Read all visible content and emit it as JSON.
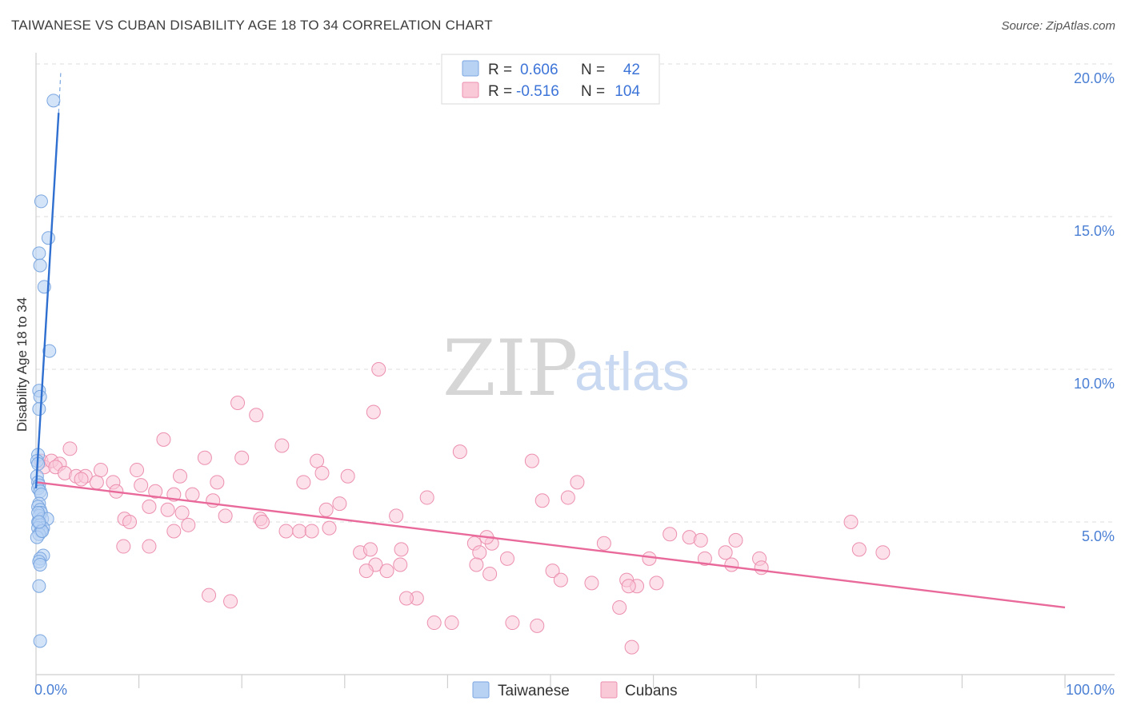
{
  "header": {
    "title": "TAIWANESE VS CUBAN DISABILITY AGE 18 TO 34 CORRELATION CHART",
    "source": "Source: ZipAtlas.com"
  },
  "watermark": {
    "zip": "ZIP",
    "atlas": "atlas"
  },
  "colors": {
    "taiwanese_fill": "#b8d2f3",
    "taiwanese_stroke": "#7aa6e0",
    "taiwanese_line": "#2f6fd0",
    "cubans_fill": "#f9c9d8",
    "cubans_stroke": "#ec8fae",
    "cubans_line": "#e8699a",
    "grid": "#dcdcdc",
    "axis_text": "#4a7fd4"
  },
  "legend": {
    "rows": [
      {
        "r_label": "R =",
        "r_value": "0.606",
        "n_label": "N =",
        "n_value": "42"
      },
      {
        "r_label": "R =",
        "r_value": "-0.516",
        "n_label": "N =",
        "n_value": "104"
      }
    ]
  },
  "chart_data": {
    "type": "scatter",
    "title": "TAIWANESE VS CUBAN DISABILITY AGE 18 TO 34 CORRELATION CHART",
    "xlabel": "",
    "ylabel": "Disability Age 18 to 34",
    "xlim": [
      0,
      100
    ],
    "ylim": [
      0,
      20
    ],
    "x_tick_labels": [
      "0.0%",
      "100.0%"
    ],
    "y_ticks": [
      5,
      10,
      15,
      20
    ],
    "y_tick_labels": [
      "5.0%",
      "10.0%",
      "15.0%",
      "20.0%"
    ],
    "series": [
      {
        "name": "Taiwanese",
        "r": 0.606,
        "n": 42,
        "trend": {
          "x": [
            0.0,
            2.2
          ],
          "y": [
            6.1,
            18.4
          ],
          "dashed_ext_x": [
            2.2,
            2.4
          ],
          "dashed_ext_y": [
            18.4,
            19.7
          ]
        },
        "points": [
          [
            1.7,
            18.8
          ],
          [
            0.5,
            15.5
          ],
          [
            1.2,
            14.3
          ],
          [
            0.3,
            13.8
          ],
          [
            0.4,
            13.4
          ],
          [
            0.8,
            12.7
          ],
          [
            1.3,
            10.6
          ],
          [
            0.3,
            9.3
          ],
          [
            0.4,
            9.1
          ],
          [
            0.3,
            8.7
          ],
          [
            0.2,
            7.2
          ],
          [
            0.1,
            7.0
          ],
          [
            0.2,
            6.9
          ],
          [
            0.1,
            6.5
          ],
          [
            0.2,
            6.3
          ],
          [
            0.3,
            6.2
          ],
          [
            0.2,
            6.1
          ],
          [
            0.4,
            6.0
          ],
          [
            0.5,
            5.9
          ],
          [
            0.3,
            5.6
          ],
          [
            0.2,
            5.5
          ],
          [
            0.4,
            5.4
          ],
          [
            0.5,
            5.3
          ],
          [
            0.3,
            5.2
          ],
          [
            0.6,
            5.1
          ],
          [
            1.1,
            5.1
          ],
          [
            0.2,
            5.0
          ],
          [
            0.4,
            4.9
          ],
          [
            0.7,
            4.8
          ],
          [
            0.2,
            4.8
          ],
          [
            0.5,
            4.7
          ],
          [
            0.3,
            4.6
          ],
          [
            0.1,
            4.5
          ],
          [
            0.7,
            3.9
          ],
          [
            0.4,
            3.8
          ],
          [
            0.3,
            3.7
          ],
          [
            0.4,
            3.6
          ],
          [
            0.3,
            2.9
          ],
          [
            0.4,
            1.1
          ],
          [
            0.2,
            5.3
          ],
          [
            0.6,
            4.7
          ],
          [
            0.3,
            5.0
          ]
        ]
      },
      {
        "name": "Cubans",
        "r": -0.516,
        "n": 104,
        "trend": {
          "x": [
            0.0,
            100.0
          ],
          "y": [
            6.3,
            2.2
          ]
        },
        "points": [
          [
            0.5,
            7.0
          ],
          [
            0.8,
            6.8
          ],
          [
            1.5,
            7.0
          ],
          [
            2.3,
            6.9
          ],
          [
            1.9,
            6.8
          ],
          [
            3.3,
            7.4
          ],
          [
            2.8,
            6.6
          ],
          [
            3.9,
            6.5
          ],
          [
            4.8,
            6.5
          ],
          [
            5.9,
            6.3
          ],
          [
            6.3,
            6.7
          ],
          [
            7.5,
            6.3
          ],
          [
            4.4,
            6.4
          ],
          [
            7.8,
            6.0
          ],
          [
            9.8,
            6.7
          ],
          [
            10.2,
            6.2
          ],
          [
            11.6,
            6.0
          ],
          [
            12.4,
            7.7
          ],
          [
            13.4,
            5.9
          ],
          [
            14.0,
            6.5
          ],
          [
            15.2,
            5.9
          ],
          [
            16.4,
            7.1
          ],
          [
            17.6,
            6.3
          ],
          [
            17.2,
            5.7
          ],
          [
            8.6,
            5.1
          ],
          [
            11.0,
            5.5
          ],
          [
            12.8,
            5.4
          ],
          [
            14.2,
            5.3
          ],
          [
            14.8,
            4.9
          ],
          [
            13.4,
            4.7
          ],
          [
            9.1,
            5.0
          ],
          [
            8.5,
            4.2
          ],
          [
            11.0,
            4.2
          ],
          [
            18.4,
            5.2
          ],
          [
            20.0,
            7.1
          ],
          [
            19.6,
            8.9
          ],
          [
            21.4,
            8.5
          ],
          [
            23.9,
            7.5
          ],
          [
            21.8,
            5.1
          ],
          [
            22.0,
            5.0
          ],
          [
            24.3,
            4.7
          ],
          [
            25.6,
            4.7
          ],
          [
            26.8,
            4.7
          ],
          [
            27.3,
            7.0
          ],
          [
            26.0,
            6.3
          ],
          [
            27.8,
            6.6
          ],
          [
            28.2,
            5.4
          ],
          [
            28.5,
            4.8
          ],
          [
            29.5,
            5.6
          ],
          [
            30.3,
            6.5
          ],
          [
            33.3,
            10.0
          ],
          [
            32.8,
            8.6
          ],
          [
            31.5,
            4.0
          ],
          [
            35.5,
            4.1
          ],
          [
            35.0,
            5.2
          ],
          [
            32.5,
            4.1
          ],
          [
            33.0,
            3.6
          ],
          [
            34.1,
            3.4
          ],
          [
            35.4,
            3.6
          ],
          [
            32.1,
            3.4
          ],
          [
            37.0,
            2.5
          ],
          [
            36.0,
            2.5
          ],
          [
            38.0,
            5.8
          ],
          [
            41.2,
            7.3
          ],
          [
            44.1,
            3.3
          ],
          [
            44.3,
            4.3
          ],
          [
            42.6,
            4.3
          ],
          [
            43.8,
            4.5
          ],
          [
            45.8,
            3.8
          ],
          [
            43.1,
            4.0
          ],
          [
            42.8,
            3.6
          ],
          [
            48.2,
            7.0
          ],
          [
            49.2,
            5.7
          ],
          [
            51.7,
            5.8
          ],
          [
            52.6,
            6.3
          ],
          [
            50.2,
            3.4
          ],
          [
            51.0,
            3.1
          ],
          [
            54.0,
            3.0
          ],
          [
            55.2,
            4.3
          ],
          [
            57.4,
            3.1
          ],
          [
            58.4,
            2.9
          ],
          [
            63.5,
            4.5
          ],
          [
            61.6,
            4.6
          ],
          [
            64.6,
            4.4
          ],
          [
            65.0,
            3.8
          ],
          [
            67.0,
            4.0
          ],
          [
            67.6,
            3.6
          ],
          [
            68.0,
            4.4
          ],
          [
            70.3,
            3.8
          ],
          [
            70.5,
            3.5
          ],
          [
            79.2,
            5.0
          ],
          [
            80.0,
            4.1
          ],
          [
            82.3,
            4.0
          ],
          [
            60.3,
            3.0
          ],
          [
            59.6,
            3.8
          ],
          [
            56.7,
            2.2
          ],
          [
            48.7,
            1.6
          ],
          [
            46.3,
            1.7
          ],
          [
            40.4,
            1.7
          ],
          [
            38.7,
            1.7
          ],
          [
            57.6,
            2.9
          ],
          [
            57.9,
            0.9
          ],
          [
            16.8,
            2.6
          ],
          [
            18.9,
            2.4
          ]
        ]
      }
    ]
  },
  "bottom_legend": [
    {
      "label": "Taiwanese"
    },
    {
      "label": "Cubans"
    }
  ]
}
